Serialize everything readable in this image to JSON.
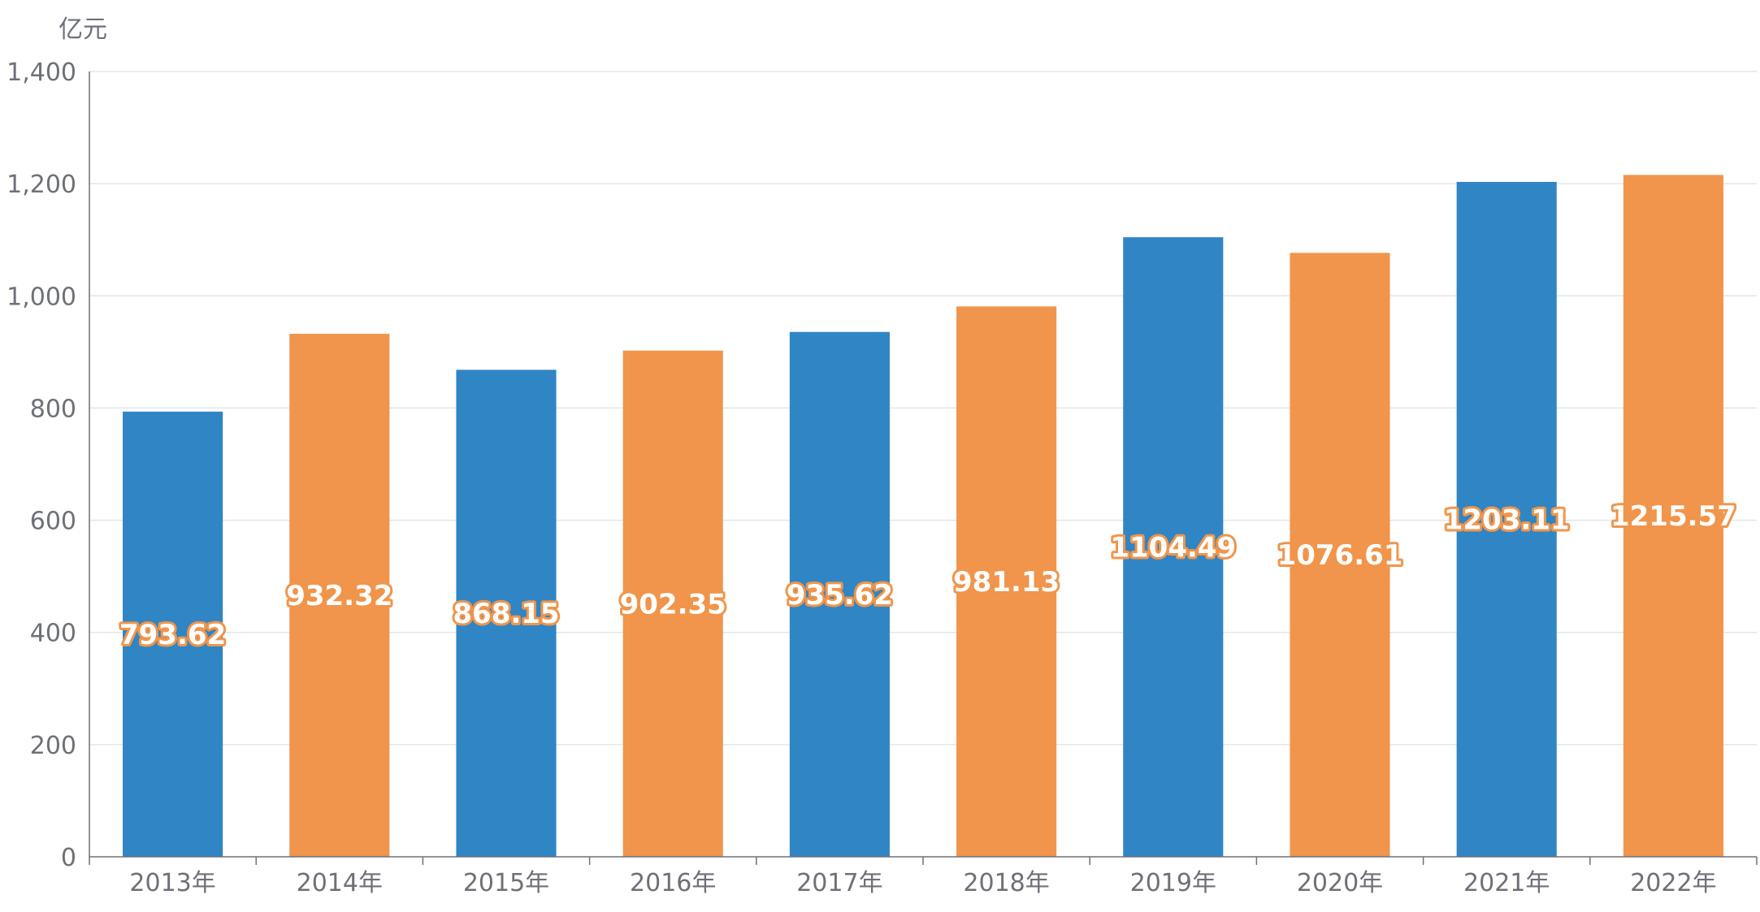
{
  "chart_data": {
    "type": "bar",
    "unit": "亿元",
    "categories": [
      "2013年",
      "2014年",
      "2015年",
      "2016年",
      "2017年",
      "2018年",
      "2019年",
      "2020年",
      "2021年",
      "2022年"
    ],
    "values": [
      793.62,
      932.32,
      868.15,
      902.35,
      935.62,
      981.13,
      1104.49,
      1076.61,
      1203.11,
      1215.57
    ],
    "value_labels": [
      "793.62",
      "932.32",
      "868.15",
      "902.35",
      "935.62",
      "981.13",
      "1104.49",
      "1076.61",
      "1203.11",
      "1215.57"
    ],
    "bar_colors": [
      "#3085c4",
      "#f0954b",
      "#3085c4",
      "#f0954b",
      "#3085c4",
      "#f0954b",
      "#3085c4",
      "#f0954b",
      "#3085c4",
      "#f0954b"
    ],
    "ylim": [
      0,
      1400
    ],
    "y_ticks": [
      0,
      200,
      400,
      600,
      800,
      1000,
      1200,
      1400
    ],
    "y_tick_labels": [
      "0",
      "200",
      "400",
      "600",
      "800",
      "1,000",
      "1,200",
      "1,400"
    ],
    "grid": true,
    "legend": "none",
    "colors": {
      "blue": "#3085c4",
      "orange": "#f0954b",
      "grid": "#e0e6f1",
      "axis": "#6e7079"
    }
  }
}
